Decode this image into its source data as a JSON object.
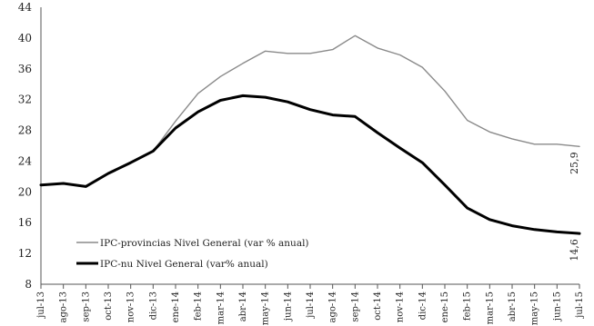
{
  "chart_data": {
    "type": "line",
    "title": "",
    "xlabel": "",
    "ylabel": "",
    "ylim": [
      8,
      44
    ],
    "yticks": [
      8,
      12,
      16,
      20,
      24,
      28,
      32,
      36,
      40,
      44
    ],
    "grid": false,
    "legend_position": "bottom-left",
    "categories": [
      "jul-13",
      "ago-13",
      "sep-13",
      "oct-13",
      "nov-13",
      "dic-13",
      "ene-14",
      "feb-14",
      "mar-14",
      "abr-14",
      "may-14",
      "jun-14",
      "jul-14",
      "ago-14",
      "sep-14",
      "oct-14",
      "nov-14",
      "dic-14",
      "ene-15",
      "feb-15",
      "mar-15",
      "abr-15",
      "may-15",
      "jun-15",
      "jul-15"
    ],
    "series": [
      {
        "name": "IPC-provincias Nivel General (var % anual)",
        "color": "#8a8a8a",
        "values": [
          20.9,
          21.1,
          20.7,
          22.4,
          23.8,
          25.3,
          29.2,
          32.8,
          35.0,
          36.7,
          38.3,
          38.0,
          38.0,
          38.5,
          40.3,
          38.7,
          37.8,
          36.2,
          33.1,
          29.3,
          27.8,
          26.9,
          26.2,
          26.2,
          25.9
        ],
        "end_label": "25,9",
        "stroke": 1.4
      },
      {
        "name": "IPC-nu Nivel General (var% anual)",
        "color": "#000000",
        "values": [
          20.9,
          21.1,
          20.7,
          22.4,
          23.8,
          25.3,
          28.3,
          30.4,
          31.9,
          32.5,
          32.3,
          31.7,
          30.7,
          30.0,
          29.8,
          27.7,
          25.7,
          23.8,
          20.9,
          17.9,
          16.4,
          15.6,
          15.1,
          14.8,
          14.6
        ],
        "end_label": "14,6",
        "stroke": 3
      }
    ]
  }
}
